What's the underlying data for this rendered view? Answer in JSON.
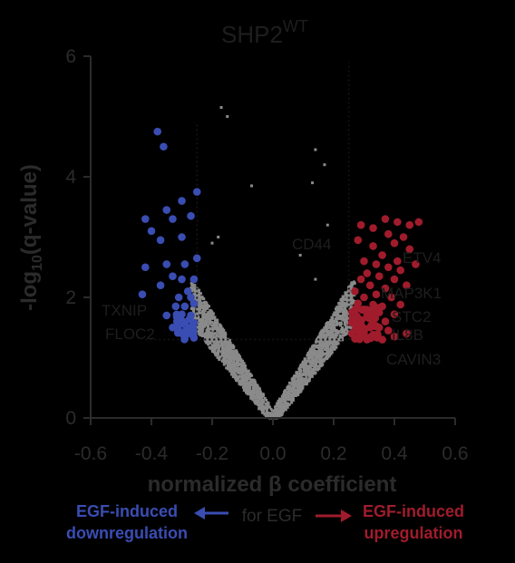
{
  "chart_data": {
    "type": "scatter",
    "title_main": "SHP2",
    "title_sup": "WT",
    "xlabel_line1": "normalized β coefficient",
    "xlabel_line2": "for EGF",
    "ylabel_prefix": "-log",
    "ylabel_sub": "10",
    "ylabel_suffix": "(q-value)",
    "xlim": [
      -0.6,
      0.6
    ],
    "ylim": [
      0,
      6
    ],
    "xticks": [
      "-0.6",
      "-0.4",
      "-0.2",
      "0.0",
      "0.2",
      "0.4",
      "0.6"
    ],
    "yticks": [
      "0",
      "2",
      "4",
      "6"
    ],
    "thresholds": {
      "x_low": -0.25,
      "x_high": 0.25,
      "y": 1.3
    },
    "colors": {
      "down": "#3a4db3",
      "up": "#a01c2c",
      "background": "#8a8a8a",
      "axis": "#2b2b2b"
    },
    "series": [
      {
        "role": "down",
        "points": [
          [
            -0.38,
            4.75
          ],
          [
            -0.36,
            4.5
          ],
          [
            -0.25,
            3.75
          ],
          [
            -0.3,
            3.6
          ],
          [
            -0.35,
            3.45
          ],
          [
            -0.42,
            3.3
          ],
          [
            -0.33,
            3.3
          ],
          [
            -0.27,
            3.35
          ],
          [
            -0.4,
            3.1
          ],
          [
            -0.3,
            3.0
          ],
          [
            -0.37,
            2.95
          ],
          [
            -0.25,
            2.65
          ],
          [
            -0.35,
            2.55
          ],
          [
            -0.42,
            2.5
          ],
          [
            -0.29,
            2.55
          ],
          [
            -0.33,
            2.35
          ],
          [
            -0.3,
            2.3
          ],
          [
            -0.26,
            2.3
          ],
          [
            -0.37,
            2.2
          ],
          [
            -0.28,
            2.1
          ],
          [
            -0.31,
            2.0
          ],
          [
            -0.43,
            2.05
          ],
          [
            -0.27,
            2.0
          ],
          [
            -0.32,
            1.85
          ],
          [
            -0.29,
            1.85
          ],
          [
            -0.26,
            1.9
          ],
          [
            -0.3,
            1.72
          ],
          [
            -0.35,
            1.7
          ],
          [
            -0.27,
            1.7
          ],
          [
            -0.31,
            1.6
          ],
          [
            -0.29,
            1.55
          ],
          [
            -0.26,
            1.58
          ],
          [
            -0.33,
            1.5
          ],
          [
            -0.28,
            1.48
          ],
          [
            -0.3,
            1.42
          ],
          [
            -0.27,
            1.4
          ],
          [
            -0.29,
            1.35
          ],
          [
            -0.26,
            1.33
          ]
        ]
      },
      {
        "role": "up",
        "points": [
          [
            0.37,
            3.3
          ],
          [
            0.41,
            3.25
          ],
          [
            0.48,
            3.25
          ],
          [
            0.45,
            3.2
          ],
          [
            0.29,
            3.2
          ],
          [
            0.33,
            3.15
          ],
          [
            0.38,
            3.05
          ],
          [
            0.43,
            3.0
          ],
          [
            0.28,
            2.95
          ],
          [
            0.4,
            2.9
          ],
          [
            0.33,
            2.85
          ],
          [
            0.45,
            2.8
          ],
          [
            0.36,
            2.7
          ],
          [
            0.3,
            2.6
          ],
          [
            0.41,
            2.6
          ],
          [
            0.34,
            2.55
          ],
          [
            0.38,
            2.5
          ],
          [
            0.47,
            2.55
          ],
          [
            0.31,
            2.4
          ],
          [
            0.42,
            2.45
          ],
          [
            0.35,
            2.35
          ],
          [
            0.29,
            2.3
          ],
          [
            0.4,
            2.3
          ],
          [
            0.32,
            2.2
          ],
          [
            0.37,
            2.15
          ],
          [
            0.44,
            2.2
          ],
          [
            0.27,
            2.1
          ],
          [
            0.34,
            2.05
          ],
          [
            0.3,
            2.0
          ],
          [
            0.39,
            2.0
          ],
          [
            0.28,
            1.9
          ],
          [
            0.33,
            1.88
          ],
          [
            0.36,
            1.85
          ],
          [
            0.42,
            1.88
          ],
          [
            0.3,
            1.8
          ],
          [
            0.27,
            1.78
          ],
          [
            0.35,
            1.75
          ],
          [
            0.4,
            1.72
          ],
          [
            0.31,
            1.7
          ],
          [
            0.28,
            1.65
          ],
          [
            0.33,
            1.62
          ],
          [
            0.37,
            1.6
          ],
          [
            0.29,
            1.55
          ],
          [
            0.26,
            1.58
          ],
          [
            0.32,
            1.5
          ],
          [
            0.35,
            1.5
          ],
          [
            0.27,
            1.45
          ],
          [
            0.3,
            1.42
          ],
          [
            0.38,
            1.45
          ],
          [
            0.26,
            1.4
          ],
          [
            0.33,
            1.38
          ],
          [
            0.29,
            1.35
          ],
          [
            0.4,
            1.35
          ],
          [
            0.27,
            1.32
          ],
          [
            0.31,
            1.3
          ],
          [
            0.44,
            1.4
          ],
          [
            0.36,
            1.3
          ]
        ]
      },
      {
        "role": "background",
        "points": [
          [
            -0.17,
            5.15
          ],
          [
            -0.15,
            5.0
          ],
          [
            -0.07,
            3.85
          ],
          [
            0.14,
            4.45
          ],
          [
            0.17,
            4.2
          ],
          [
            0.13,
            3.9
          ],
          [
            -0.18,
            3.0
          ],
          [
            0.09,
            2.7
          ],
          [
            0.14,
            2.3
          ],
          [
            -0.2,
            2.9
          ],
          [
            0.18,
            3.2
          ]
        ]
      }
    ],
    "annotations": {
      "left": [
        "TXNIP",
        "FLOC2"
      ],
      "right_top": [
        "CD44",
        "ETV4"
      ],
      "right": [
        "MAP3K1",
        "STC2",
        "IL8B",
        "CAVIN3"
      ]
    }
  },
  "captions": {
    "down_line1": "EGF-induced",
    "down_line2": "downregulation",
    "up_line1": "EGF-induced",
    "up_line2": "upregulation"
  }
}
